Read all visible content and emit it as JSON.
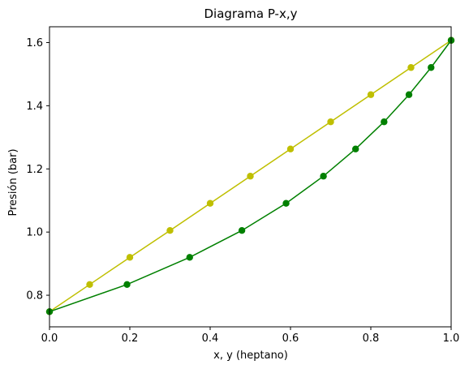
{
  "chart_data": {
    "type": "line",
    "title": "Diagrama P-x,y",
    "xlabel": "x, y (heptano)",
    "ylabel": "Presión (bar)",
    "xlim": [
      0.0,
      1.0
    ],
    "ylim": [
      0.7,
      1.65
    ],
    "grid": false,
    "legend": "none",
    "xticks": [
      "0.0",
      "0.2",
      "0.4",
      "0.6",
      "0.8",
      "1.0"
    ],
    "yticks": [
      "0.8",
      "1.0",
      "1.2",
      "1.4",
      "1.6"
    ],
    "series": [
      {
        "color": "#bfbf00",
        "points": [
          [
            0.0,
            0.748
          ],
          [
            0.1,
            0.834
          ],
          [
            0.2,
            0.92
          ],
          [
            0.3,
            1.005
          ],
          [
            0.4,
            1.091
          ],
          [
            0.5,
            1.177
          ],
          [
            0.6,
            1.263
          ],
          [
            0.7,
            1.349
          ],
          [
            0.8,
            1.435
          ],
          [
            0.9,
            1.521
          ],
          [
            1.0,
            1.607
          ]
        ]
      },
      {
        "color": "#008000",
        "points": [
          [
            0.0,
            0.748
          ],
          [
            0.193,
            0.834
          ],
          [
            0.349,
            0.92
          ],
          [
            0.479,
            1.005
          ],
          [
            0.589,
            1.091
          ],
          [
            0.682,
            1.177
          ],
          [
            0.762,
            1.263
          ],
          [
            0.833,
            1.349
          ],
          [
            0.895,
            1.435
          ],
          [
            0.95,
            1.521
          ],
          [
            1.0,
            1.607
          ]
        ]
      }
    ]
  }
}
